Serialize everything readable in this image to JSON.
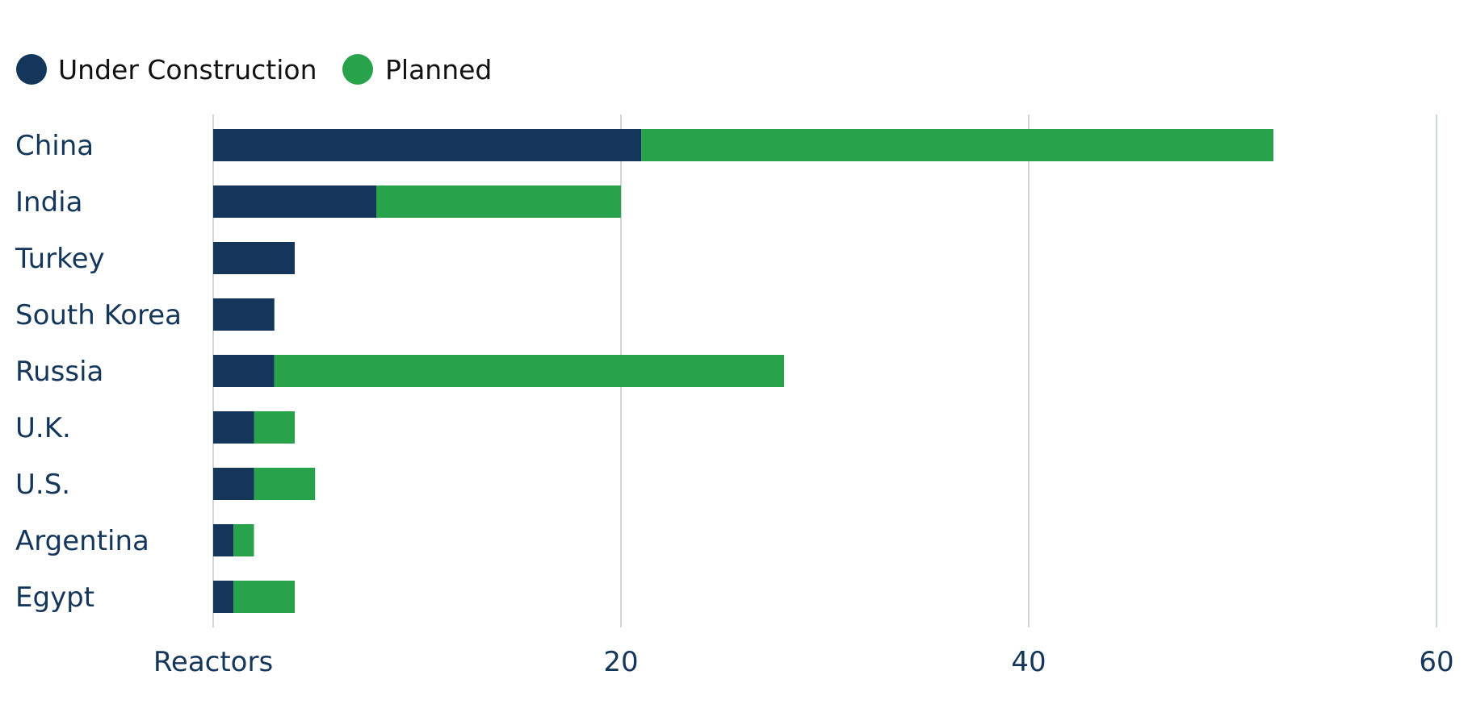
{
  "chart_data": {
    "type": "bar",
    "orientation": "horizontal",
    "stacked": true,
    "categories": [
      "China",
      "India",
      "Turkey",
      "South Korea",
      "Russia",
      "U.K.",
      "U.S.",
      "Argentina",
      "Egypt"
    ],
    "series": [
      {
        "name": "Under Construction",
        "color": "#13365a",
        "values": [
          21,
          8,
          4,
          3,
          3,
          2,
          2,
          1,
          1
        ]
      },
      {
        "name": "Planned",
        "color": "#28a24b",
        "values": [
          31,
          12,
          0,
          0,
          25,
          2,
          3,
          1,
          3
        ]
      }
    ],
    "xlabel": "Reactors",
    "x_ticks": [
      {
        "value": 0,
        "label": "Reactors"
      },
      {
        "value": 20,
        "label": "20"
      },
      {
        "value": 40,
        "label": "40"
      },
      {
        "value": 60,
        "label": "60"
      }
    ],
    "xlim": [
      0,
      60
    ],
    "grid": "vertical",
    "legend_position": "top-left"
  }
}
